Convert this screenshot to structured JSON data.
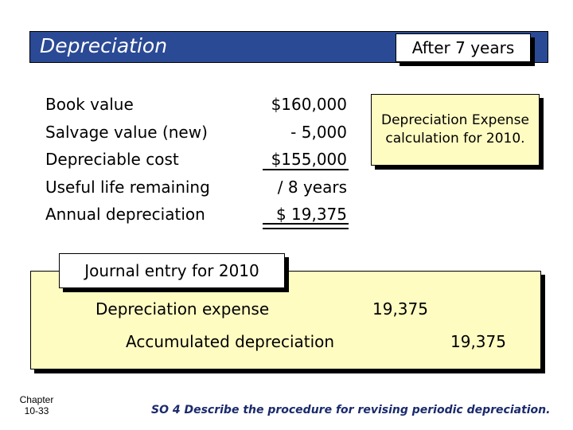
{
  "header": {
    "title": "Depreciation",
    "badge": "After 7 years"
  },
  "calculation": {
    "labels": [
      "Book value",
      "Salvage value (new)",
      "Depreciable cost",
      "Useful life remaining",
      "Annual depreciation"
    ],
    "amounts": [
      "$160,000",
      "- 5,000",
      "$155,000",
      "/ 8 years",
      "$ 19,375"
    ]
  },
  "callout": {
    "text": "Depreciation Expense calculation for 2010."
  },
  "journal": {
    "label": "Journal entry for 2010",
    "debit_account": "Depreciation expense",
    "debit_amount": "19,375",
    "credit_account": "Accumulated depreciation",
    "credit_amount": "19,375"
  },
  "footer": {
    "chapter_line1": "Chapter",
    "chapter_line2": "10-33",
    "objective": "SO 4  Describe the procedure for revising periodic depreciation."
  },
  "colors": {
    "title_bar": "#2b4a95",
    "panel_fill": "#fffcc2",
    "objective_text": "#1a2a6c"
  }
}
